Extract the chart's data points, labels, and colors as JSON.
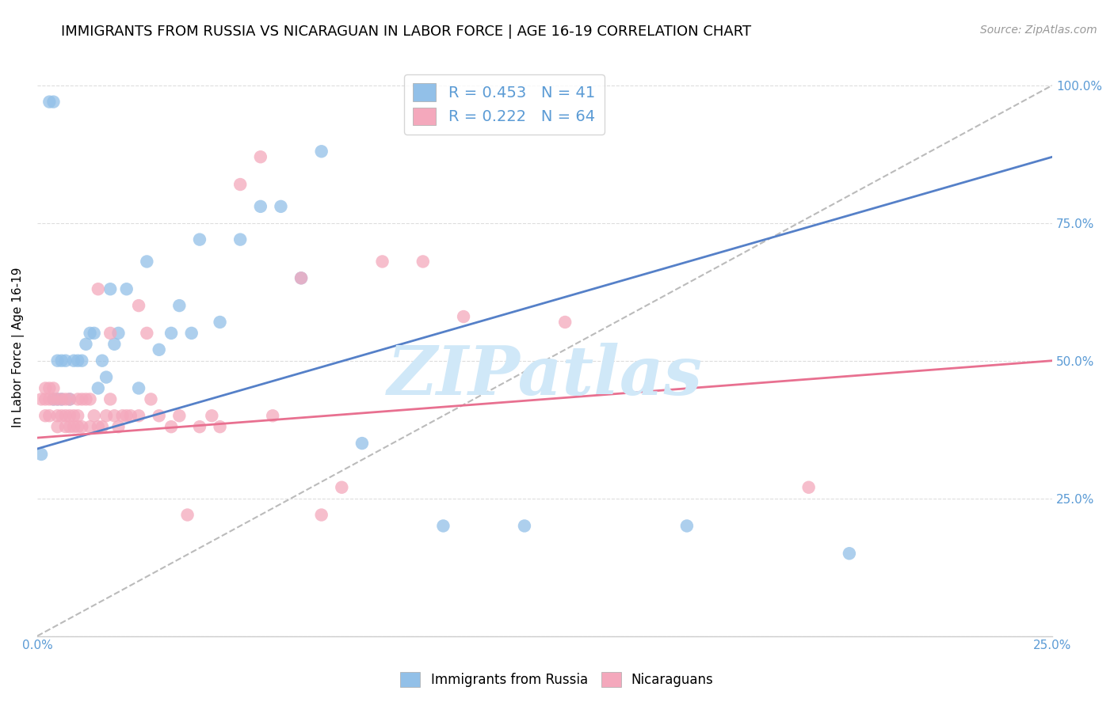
{
  "title": "IMMIGRANTS FROM RUSSIA VS NICARAGUAN IN LABOR FORCE | AGE 16-19 CORRELATION CHART",
  "source": "Source: ZipAtlas.com",
  "ylabel": "In Labor Force | Age 16-19",
  "xlim": [
    0.0,
    0.25
  ],
  "ylim": [
    0.0,
    1.05
  ],
  "yticks": [
    0.0,
    0.25,
    0.5,
    0.75,
    1.0
  ],
  "ytick_labels": [
    "",
    "25.0%",
    "50.0%",
    "75.0%",
    "100.0%"
  ],
  "xticks": [
    0.0,
    0.025,
    0.05,
    0.075,
    0.1,
    0.125,
    0.15,
    0.175,
    0.2,
    0.225,
    0.25
  ],
  "xtick_labels": [
    "0.0%",
    "",
    "",
    "",
    "",
    "",
    "",
    "",
    "",
    "",
    "25.0%"
  ],
  "russia_R": 0.453,
  "russia_N": 41,
  "nicaragua_R": 0.222,
  "nicaragua_N": 64,
  "russia_color": "#92C0E8",
  "nicaragua_color": "#F4A8BC",
  "russia_line_color": "#5580C8",
  "nicaragua_line_color": "#E87090",
  "diagonal_color": "#BBBBBB",
  "title_fontsize": 13,
  "axis_label_fontsize": 11,
  "tick_fontsize": 11,
  "tick_color": "#5B9BD5",
  "russia_line_x0": 0.0,
  "russia_line_y0": 0.34,
  "russia_line_x1": 0.25,
  "russia_line_y1": 0.87,
  "nicaragua_line_x0": 0.0,
  "nicaragua_line_y0": 0.36,
  "nicaragua_line_x1": 0.25,
  "nicaragua_line_y1": 0.5,
  "russia_scatter_x": [
    0.001,
    0.003,
    0.004,
    0.004,
    0.005,
    0.005,
    0.006,
    0.006,
    0.007,
    0.008,
    0.009,
    0.01,
    0.011,
    0.012,
    0.013,
    0.014,
    0.015,
    0.016,
    0.017,
    0.018,
    0.019,
    0.02,
    0.022,
    0.025,
    0.027,
    0.03,
    0.033,
    0.035,
    0.038,
    0.04,
    0.045,
    0.05,
    0.055,
    0.06,
    0.065,
    0.07,
    0.08,
    0.1,
    0.12,
    0.16,
    0.2
  ],
  "russia_scatter_y": [
    0.33,
    0.97,
    0.97,
    0.43,
    0.43,
    0.5,
    0.43,
    0.5,
    0.5,
    0.43,
    0.5,
    0.5,
    0.5,
    0.53,
    0.55,
    0.55,
    0.45,
    0.5,
    0.47,
    0.63,
    0.53,
    0.55,
    0.63,
    0.45,
    0.68,
    0.52,
    0.55,
    0.6,
    0.55,
    0.72,
    0.57,
    0.72,
    0.78,
    0.78,
    0.65,
    0.88,
    0.35,
    0.2,
    0.2,
    0.2,
    0.15
  ],
  "nicaragua_scatter_x": [
    0.001,
    0.002,
    0.002,
    0.002,
    0.003,
    0.003,
    0.003,
    0.004,
    0.004,
    0.005,
    0.005,
    0.005,
    0.006,
    0.006,
    0.007,
    0.007,
    0.007,
    0.008,
    0.008,
    0.008,
    0.009,
    0.009,
    0.01,
    0.01,
    0.01,
    0.011,
    0.011,
    0.012,
    0.013,
    0.013,
    0.014,
    0.015,
    0.015,
    0.016,
    0.017,
    0.018,
    0.018,
    0.019,
    0.02,
    0.021,
    0.022,
    0.023,
    0.025,
    0.025,
    0.027,
    0.028,
    0.03,
    0.033,
    0.035,
    0.037,
    0.04,
    0.043,
    0.045,
    0.05,
    0.055,
    0.058,
    0.065,
    0.07,
    0.075,
    0.085,
    0.095,
    0.105,
    0.13,
    0.19
  ],
  "nicaragua_scatter_y": [
    0.43,
    0.4,
    0.43,
    0.45,
    0.4,
    0.43,
    0.45,
    0.43,
    0.45,
    0.38,
    0.4,
    0.43,
    0.4,
    0.43,
    0.38,
    0.4,
    0.43,
    0.38,
    0.4,
    0.43,
    0.38,
    0.4,
    0.38,
    0.4,
    0.43,
    0.38,
    0.43,
    0.43,
    0.38,
    0.43,
    0.4,
    0.38,
    0.63,
    0.38,
    0.4,
    0.43,
    0.55,
    0.4,
    0.38,
    0.4,
    0.4,
    0.4,
    0.4,
    0.6,
    0.55,
    0.43,
    0.4,
    0.38,
    0.4,
    0.22,
    0.38,
    0.4,
    0.38,
    0.82,
    0.87,
    0.4,
    0.65,
    0.22,
    0.27,
    0.68,
    0.68,
    0.58,
    0.57,
    0.27
  ],
  "watermark_text": "ZIPatlas",
  "watermark_color": "#D0E8F8",
  "background_color": "#FFFFFF",
  "grid_color": "#DDDDDD"
}
